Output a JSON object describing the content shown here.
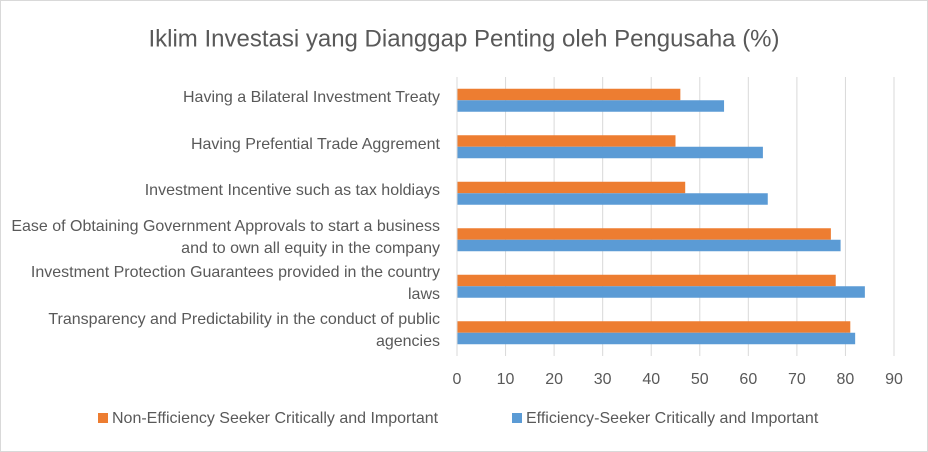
{
  "chart_data": {
    "type": "barh",
    "title": "Iklim Investasi yang Dianggap Penting oleh Pengusaha (%)",
    "categories": [
      "Having a Bilateral Investment Treaty",
      "Having Prefential Trade Aggrement",
      "Investment Incentive such as tax holdiays",
      "Ease of Obtaining Government Approvals to start a business and to own all equity in the company",
      "Investment Protection Guarantees provided in the country laws",
      "Transparency and Predictability in the conduct of public agencies"
    ],
    "series": [
      {
        "name": "Non-Efficiency Seeker Critically and Important",
        "color": "#ed7d31",
        "values": [
          46,
          45,
          47,
          77,
          78,
          81
        ]
      },
      {
        "name": "Efficiency-Seeker Critically and Important",
        "color": "#5b9bd5",
        "values": [
          55,
          63,
          64,
          79,
          84,
          82
        ]
      }
    ],
    "xlim": [
      0,
      90
    ],
    "xticks": [
      0,
      10,
      20,
      30,
      40,
      50,
      60,
      70,
      80,
      90
    ],
    "grid": true,
    "legend": "bottom"
  }
}
